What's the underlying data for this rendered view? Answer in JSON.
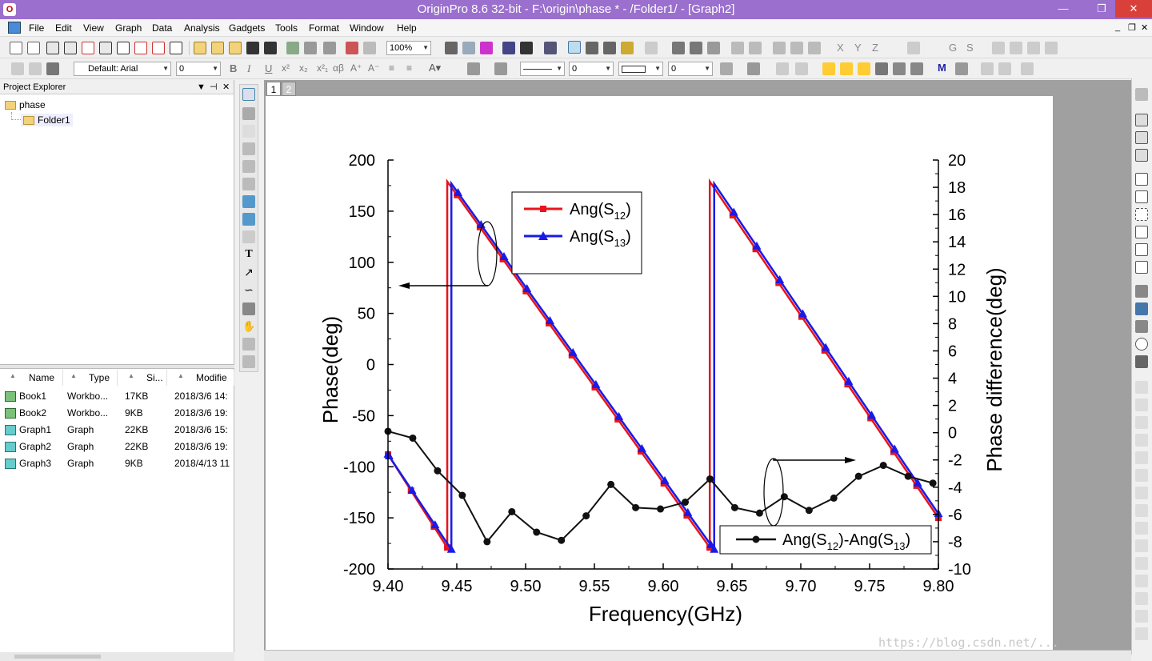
{
  "window": {
    "title": "OriginPro 8.6 32-bit - F:\\origin\\phase * - /Folder1/ - [Graph2]",
    "buttons": {
      "minimize": "—",
      "restore": "❐",
      "close": "✕"
    }
  },
  "menu": [
    "File",
    "Edit",
    "View",
    "Graph",
    "Data",
    "Analysis",
    "Gadgets",
    "Tools",
    "Format",
    "Window",
    "Help"
  ],
  "toolbar": {
    "zoom_value": "100%",
    "font_name": "Default: Arial",
    "font_size": "0",
    "line_width": "0",
    "border_width": "0",
    "fill_pattern": "0"
  },
  "project_explorer": {
    "title": "Project Explorer",
    "root": "phase",
    "folder": "Folder1",
    "columns": [
      "Name",
      "Type",
      "Si...",
      "Modifie"
    ],
    "items": [
      {
        "name": "Book1",
        "type": "Workbo...",
        "size": "17KB",
        "modified": "2018/3/6 14:",
        "kind": "book"
      },
      {
        "name": "Book2",
        "type": "Workbo...",
        "size": "9KB",
        "modified": "2018/3/6 19:",
        "kind": "book"
      },
      {
        "name": "Graph1",
        "type": "Graph",
        "size": "22KB",
        "modified": "2018/3/6 15:",
        "kind": "graph"
      },
      {
        "name": "Graph2",
        "type": "Graph",
        "size": "22KB",
        "modified": "2018/3/6 19:",
        "kind": "graph"
      },
      {
        "name": "Graph3",
        "type": "Graph",
        "size": "9KB",
        "modified": "2018/4/13 11",
        "kind": "graph"
      }
    ]
  },
  "page_tabs": [
    "1",
    "2"
  ],
  "watermark": "https://blog.csdn.net/...",
  "chart_data": {
    "type": "line",
    "xlabel": "Frequency(GHz)",
    "ylabel": "Phase(deg)",
    "y2label": "Phase difference(deg)",
    "xlim": [
      9.4,
      9.8
    ],
    "ylim": [
      -200,
      200
    ],
    "y2lim": [
      -10,
      20
    ],
    "xticks": [
      "9.40",
      "9.45",
      "9.50",
      "9.55",
      "9.60",
      "9.65",
      "9.70",
      "9.75",
      "9.80"
    ],
    "yticks": [
      "200",
      "150",
      "100",
      "50",
      "0",
      "-50",
      "-100",
      "-150",
      "-200"
    ],
    "y2ticks": [
      "20",
      "18",
      "16",
      "14",
      "12",
      "10",
      "8",
      "6",
      "4",
      "2",
      "0",
      "-2",
      "-4",
      "-6",
      "-8",
      "-10"
    ],
    "legend": [
      {
        "label": "Ang(S",
        "sub": "12",
        "tail": ")",
        "color": "#e8141a",
        "marker": "square"
      },
      {
        "label": "Ang(S",
        "sub": "13",
        "tail": ")",
        "color": "#1a1ae8",
        "marker": "triangle"
      }
    ],
    "legend2": {
      "label": "Ang(S",
      "sub1": "12",
      "mid": ")-Ang(S",
      "sub2": "13",
      "tail": ")",
      "color": "#111111",
      "marker": "circle"
    },
    "series": [
      {
        "name": "Ang(S12)",
        "axis": "left",
        "color": "#e8141a",
        "marker": "square",
        "x": [
          9.4,
          9.44305,
          9.44305,
          9.63385,
          9.63385,
          9.8
        ],
        "y": [
          -88,
          -179,
          179,
          -179,
          179,
          -150
        ]
      },
      {
        "name": "Ang(S13)",
        "axis": "left",
        "color": "#1a1ae8",
        "marker": "triangle",
        "x": [
          9.4,
          9.44605,
          9.44605,
          9.63705,
          9.63705,
          9.8
        ],
        "y": [
          -88,
          -181,
          177,
          -181,
          177,
          -146
        ]
      },
      {
        "name": "Ang(S12)-Ang(S13)",
        "axis": "right",
        "color": "#111111",
        "marker": "circle",
        "x": [
          9.4,
          9.418,
          9.436,
          9.454,
          9.472,
          9.49,
          9.508,
          9.526,
          9.544,
          9.562,
          9.58,
          9.598,
          9.616,
          9.634,
          9.652,
          9.67,
          9.688,
          9.706,
          9.724,
          9.742,
          9.76,
          9.778,
          9.796
        ],
        "y": [
          0.1,
          -0.4,
          -2.8,
          -4.6,
          -8,
          -5.8,
          -7.3,
          -7.9,
          -6.1,
          -3.8,
          -5.5,
          -5.6,
          -5.1,
          -3.4,
          -5.5,
          -5.9,
          -4.7,
          -5.7,
          -4.8,
          -3.2,
          -2.4,
          -3.2,
          -3.7
        ]
      }
    ]
  }
}
